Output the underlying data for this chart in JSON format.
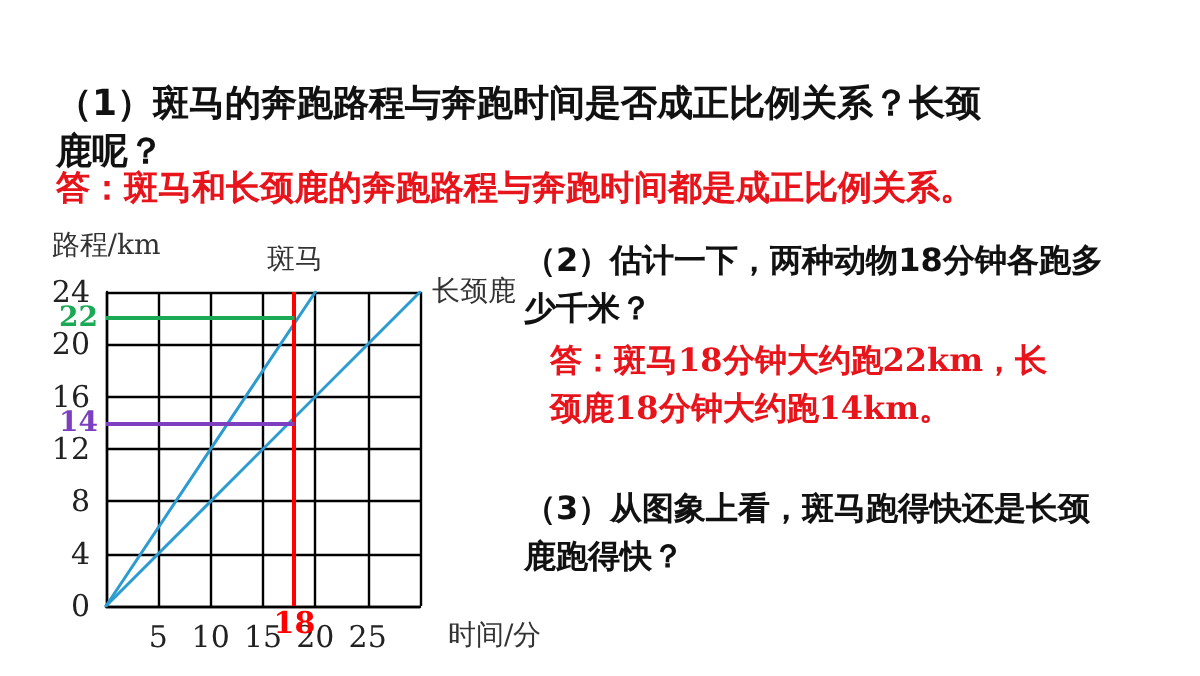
{
  "chart_data": {
    "type": "line",
    "title": "（1）斑马的奔跑路程与奔跑时间是否成正比例关系？长颈鹿呢？",
    "xlabel": "时间/分",
    "ylabel": "路程/km",
    "series": [
      {
        "name": "斑马",
        "color": "#2b9bd0",
        "x": [
          0,
          20
        ],
        "values": [
          0,
          24
        ]
      },
      {
        "name": "长颈鹿",
        "color": "#2b9bd0",
        "x": [
          0,
          30
        ],
        "values": [
          0,
          24
        ]
      }
    ],
    "xlim": [
      0,
      30
    ],
    "ylim": [
      0,
      24
    ],
    "xticks": [
      {
        "value": 0,
        "label": null
      },
      5,
      10,
      15,
      20,
      25,
      {
        "value": 30,
        "label": null
      }
    ],
    "yticks": [
      0,
      4,
      8,
      12,
      16,
      20,
      24
    ],
    "grid": true,
    "marker": "none",
    "line_style": "solid",
    "legend": false,
    "ref_lines": [
      {
        "axis": "x",
        "value": 18,
        "label": "18",
        "color": "#ff0000"
      },
      {
        "axis": "y",
        "value": 22,
        "label": "22",
        "color": "#1aaa55"
      },
      {
        "axis": "y",
        "value": 14,
        "label": "14",
        "color": "#7b3fbf"
      }
    ],
    "annotations": [
      "答：斑马和长颈鹿的奔跑路程与奔跑时间都是成正比例关系。",
      "（2）估计一下，两种动物18分钟各跑多少千米？",
      "答：斑马18分钟大约跑22km，长颈鹿18分钟大约跑14km。",
      "（3）从图象上看，斑马跑得快还是长颈鹿跑得快？"
    ]
  }
}
